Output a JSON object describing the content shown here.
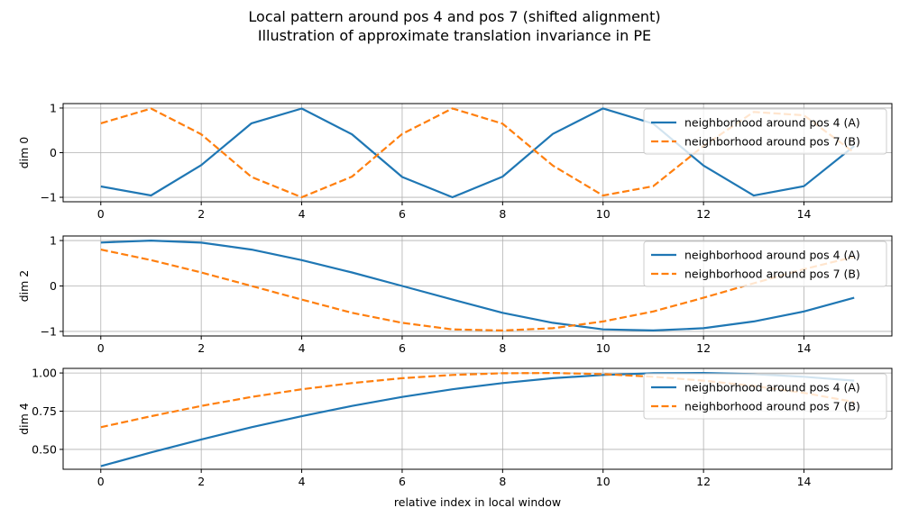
{
  "figure": {
    "title_line1": "Local pattern around pos 4 and pos 7 (shifted alignment)",
    "title_line2": "Illustration of approximate translation invariance in PE"
  },
  "chart_data": [
    {
      "type": "line",
      "ylabel": "dim 0",
      "xlabel": "",
      "x": [
        0,
        1,
        2,
        3,
        4,
        5,
        6,
        7,
        8,
        9,
        10,
        11,
        12,
        13,
        14,
        15
      ],
      "xlim": [
        -0.75,
        15.75
      ],
      "ylim": [
        -1.1,
        1.1
      ],
      "xticks": [
        0,
        2,
        4,
        6,
        8,
        10,
        12,
        14
      ],
      "yticks": [
        -1,
        0,
        1
      ],
      "ytick_labels": [
        "−1",
        "0",
        "1"
      ],
      "grid": true,
      "legend_position": "upper right",
      "series": [
        {
          "name": "neighborhood around pos 4 (A)",
          "color": "#1f77b4",
          "style": "solid",
          "values": [
            -0.757,
            -0.959,
            -0.279,
            0.657,
            0.989,
            0.412,
            -0.544,
            -1.0,
            -0.537,
            0.42,
            0.991,
            0.65,
            -0.288,
            -0.961,
            -0.751,
            0.15
          ]
        },
        {
          "name": "neighborhood around pos 7 (B)",
          "color": "#ff7f0e",
          "style": "dashed",
          "values": [
            0.657,
            0.989,
            0.412,
            -0.544,
            -1.0,
            -0.537,
            0.42,
            0.991,
            0.65,
            -0.288,
            -0.961,
            -0.751,
            0.15,
            0.913,
            0.837,
            0.0
          ]
        }
      ]
    },
    {
      "type": "line",
      "ylabel": "dim 2",
      "xlabel": "",
      "x": [
        0,
        1,
        2,
        3,
        4,
        5,
        6,
        7,
        8,
        9,
        10,
        11,
        12,
        13,
        14,
        15
      ],
      "xlim": [
        -0.75,
        15.75
      ],
      "ylim": [
        -1.1,
        1.1
      ],
      "xticks": [
        0,
        2,
        4,
        6,
        8,
        10,
        12,
        14
      ],
      "yticks": [
        -1,
        0,
        1
      ],
      "ytick_labels": [
        "−1",
        "0",
        "1"
      ],
      "grid": true,
      "legend_position": "upper right",
      "series": [
        {
          "name": "neighborhood around pos 4 (A)",
          "color": "#1f77b4",
          "style": "solid",
          "values": [
            0.955,
            0.999,
            0.953,
            0.8,
            0.568,
            0.298,
            0.0,
            -0.3,
            -0.59,
            -0.81,
            -0.955,
            -0.98,
            -0.93,
            -0.78,
            -0.56,
            -0.26
          ]
        },
        {
          "name": "neighborhood around pos 7 (B)",
          "color": "#ff7f0e",
          "style": "dashed",
          "values": [
            0.8,
            0.568,
            0.298,
            0.0,
            -0.3,
            -0.59,
            -0.81,
            -0.955,
            -0.98,
            -0.93,
            -0.78,
            -0.56,
            -0.26,
            0.06,
            0.37,
            0.64
          ]
        }
      ]
    },
    {
      "type": "line",
      "ylabel": "dim 4",
      "xlabel": "relative index in local window",
      "x": [
        0,
        1,
        2,
        3,
        4,
        5,
        6,
        7,
        8,
        9,
        10,
        11,
        12,
        13,
        14,
        15
      ],
      "xlim": [
        -0.75,
        15.75
      ],
      "ylim": [
        0.37,
        1.03
      ],
      "xticks": [
        0,
        2,
        4,
        6,
        8,
        10,
        12,
        14
      ],
      "yticks": [
        0.5,
        0.75,
        1.0
      ],
      "ytick_labels": [
        "0.50",
        "0.75",
        "1.00"
      ],
      "grid": true,
      "legend_position": "upper right",
      "series": [
        {
          "name": "neighborhood around pos 4 (A)",
          "color": "#1f77b4",
          "style": "solid",
          "values": [
            0.39,
            0.48,
            0.565,
            0.645,
            0.717,
            0.784,
            0.843,
            0.893,
            0.934,
            0.966,
            0.987,
            0.998,
            1.0,
            0.992,
            0.975,
            0.95
          ]
        },
        {
          "name": "neighborhood around pos 7 (B)",
          "color": "#ff7f0e",
          "style": "dashed",
          "values": [
            0.645,
            0.717,
            0.784,
            0.843,
            0.893,
            0.934,
            0.966,
            0.987,
            0.998,
            1.0,
            0.992,
            0.975,
            0.95,
            0.915,
            0.87,
            0.81
          ]
        }
      ]
    }
  ]
}
